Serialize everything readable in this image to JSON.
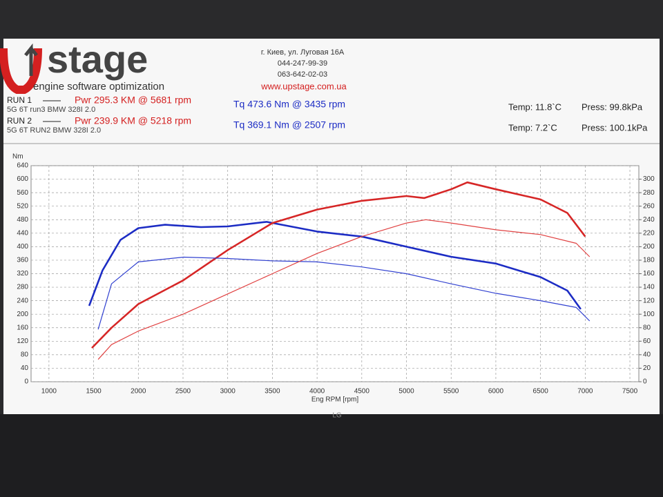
{
  "header": {
    "logo": "stage",
    "tagline": "engine software optimization",
    "address": "г. Киев, ул. Луговая 16А",
    "phone1": "044-247-99-39",
    "phone2": "063-642-02-03",
    "website": "www.upstage.com.ua",
    "bezel": "LG"
  },
  "runs": [
    {
      "label": "RUN 1",
      "power": "Pwr  295.3 KM @ 5681 rpm",
      "description": "5G 6T run3 BMW 328I 2.0",
      "torque": "Tq 473.6 Nm @ 3435 rpm",
      "temp": "Temp: 11.8`C",
      "press": "Press: 99.8kPa"
    },
    {
      "label": "RUN 2",
      "power": "Pwr  239.9 KM @ 5218 rpm",
      "description": "5G 6T RUN2 BMW 328I 2.0",
      "torque": "Tq 369.1 Nm @ 2507 rpm",
      "temp": "Temp: 7.2`C",
      "press": "Press: 100.1kPa"
    }
  ],
  "chart_data": {
    "type": "line",
    "y_label": "Nm",
    "x_label": "Eng RPM [rpm]",
    "xlim": [
      800,
      7600
    ],
    "xticks": [
      1000,
      1500,
      2000,
      2500,
      3000,
      3500,
      4000,
      4500,
      5000,
      5500,
      6000,
      6500,
      7000,
      7500
    ],
    "ylim": [
      0,
      640
    ],
    "yticks": [
      0,
      40,
      80,
      120,
      160,
      200,
      240,
      280,
      320,
      360,
      400,
      440,
      480,
      520,
      560,
      600,
      640
    ],
    "y2lim": [
      0,
      320
    ],
    "y2ticks": [
      0,
      20,
      40,
      60,
      80,
      100,
      120,
      140,
      160,
      180,
      200,
      220,
      240,
      260,
      280,
      300
    ],
    "grid": true,
    "series": [
      {
        "color": "#1c2cc4",
        "x": [
          1450,
          1600,
          1800,
          2000,
          2300,
          2700,
          3000,
          3435,
          4000,
          4500,
          5000,
          5500,
          6000,
          6500,
          6800,
          6950
        ],
        "values": [
          225,
          330,
          420,
          455,
          465,
          458,
          460,
          473.6,
          445,
          430,
          400,
          370,
          350,
          310,
          270,
          215
        ]
      },
      {
        "color": "#d62626",
        "axis": "y2",
        "x": [
          1480,
          1700,
          2000,
          2500,
          3000,
          3500,
          4000,
          4500,
          5000,
          5200,
          5500,
          5681,
          6000,
          6500,
          6800,
          7000
        ],
        "values": [
          50,
          80,
          115,
          150,
          195,
          235,
          255,
          268,
          275,
          272,
          285,
          295.3,
          285,
          270,
          250,
          215
        ]
      },
      {
        "color": "#3040d0",
        "x": [
          1550,
          1700,
          2000,
          2507,
          3000,
          3500,
          4000,
          4500,
          5000,
          5500,
          6000,
          6500,
          6900,
          7050
        ],
        "values": [
          155,
          290,
          355,
          369.1,
          365,
          358,
          355,
          340,
          320,
          290,
          262,
          240,
          220,
          180
        ]
      },
      {
        "color": "#e04040",
        "axis": "y2",
        "x": [
          1550,
          1700,
          2000,
          2500,
          3000,
          3500,
          4000,
          4500,
          5000,
          5218,
          5500,
          6000,
          6500,
          6900,
          7050
        ],
        "values": [
          33,
          55,
          75,
          100,
          130,
          160,
          190,
          215,
          235,
          239.9,
          235,
          225,
          218,
          205,
          185
        ]
      }
    ]
  }
}
